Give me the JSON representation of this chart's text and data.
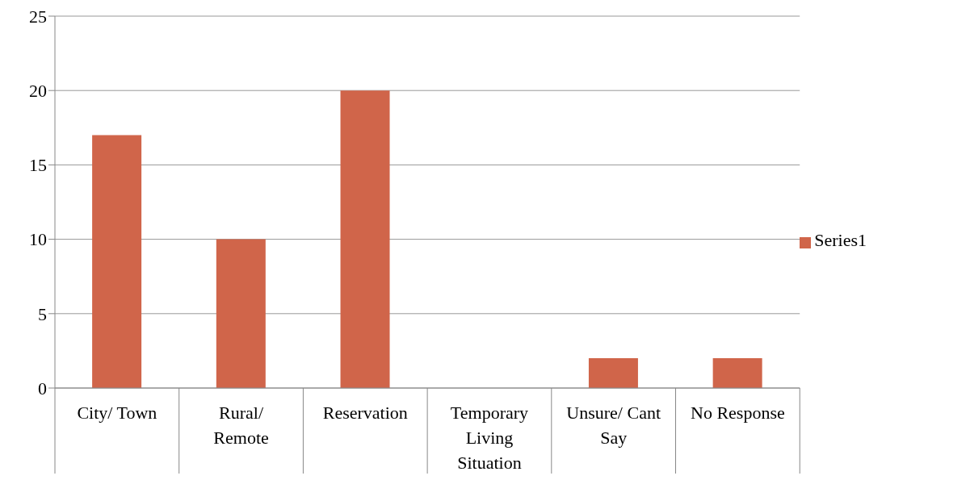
{
  "chart_data": {
    "type": "bar",
    "categories": [
      "City/ Town",
      "Rural/ Remote",
      "Reservation",
      "Temporary Living Situation",
      "Unsure/ Cant Say",
      "No Response"
    ],
    "series": [
      {
        "name": "Series1",
        "color": "#d0654a",
        "values": [
          17,
          10,
          20,
          0,
          2,
          2
        ]
      }
    ],
    "ylim": [
      0,
      25
    ],
    "yticks": [
      0,
      5,
      10,
      15,
      20,
      25
    ],
    "grid": "y",
    "legend": "right"
  }
}
